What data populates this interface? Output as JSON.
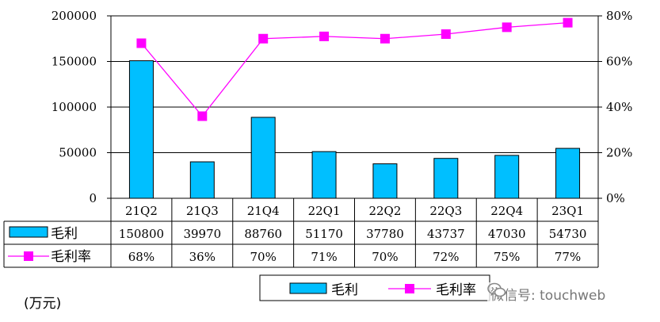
{
  "chart_data": {
    "type": "bar",
    "categories": [
      "21Q2",
      "21Q3",
      "21Q4",
      "22Q1",
      "22Q2",
      "22Q3",
      "22Q4",
      "23Q1"
    ],
    "series": [
      {
        "name": "毛利",
        "type": "bar",
        "axis": "left",
        "values": [
          150800,
          39970,
          88760,
          51170,
          37780,
          43737,
          47030,
          54730
        ],
        "color": "#00BFFF"
      },
      {
        "name": "毛利率",
        "type": "line",
        "axis": "right",
        "values": [
          68,
          36,
          70,
          71,
          70,
          72,
          75,
          77
        ],
        "labels": [
          "68%",
          "36%",
          "70%",
          "71%",
          "70%",
          "72%",
          "75%",
          "77%"
        ],
        "color": "#FF00FF"
      }
    ],
    "left_axis": {
      "ylim": [
        0,
        200000
      ],
      "ticks": [
        "0",
        "50000",
        "100000",
        "150000",
        "200000"
      ]
    },
    "right_axis": {
      "ylim": [
        0,
        80
      ],
      "ticks": [
        "0%",
        "20%",
        "40%",
        "60%",
        "80%"
      ]
    },
    "grid": true,
    "legend": "bottom-center",
    "data_table": true
  },
  "unit_note": "(万元)",
  "watermark": "微信号: touchweb"
}
